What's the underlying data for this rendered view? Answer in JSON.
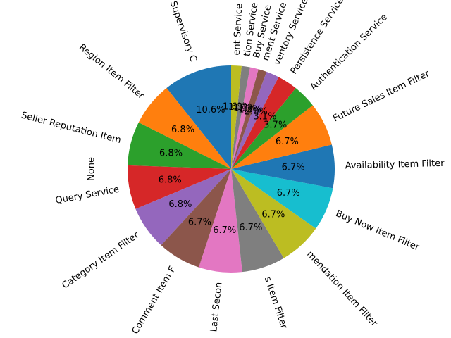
{
  "chart_data": {
    "type": "pie",
    "ylabel": "None",
    "start_angle_deg": 90,
    "direction": "counterclockwise",
    "colors": [
      "#1f77b4",
      "#ff7f0e",
      "#2ca02c",
      "#d62728",
      "#9467bd",
      "#8c564b",
      "#e377c2",
      "#7f7f7f",
      "#bcbd22",
      "#17becf"
    ],
    "slices": [
      {
        "label": "Supervisory C",
        "value": 10.6,
        "pct": "10.6%"
      },
      {
        "label": "Region Item Filter",
        "value": 6.8,
        "pct": "6.8%"
      },
      {
        "label": "Seller Reputation Item",
        "value": 6.8,
        "pct": "6.8%"
      },
      {
        "label": "Query Service",
        "value": 6.8,
        "pct": "6.8%"
      },
      {
        "label": "Category Item Filter",
        "value": 6.8,
        "pct": "6.8%"
      },
      {
        "label": "Comment Item F",
        "value": 6.7,
        "pct": "6.7%"
      },
      {
        "label": "Last Secon",
        "value": 6.7,
        "pct": "6.7%"
      },
      {
        "label": "s Item Filter",
        "value": 6.7,
        "pct": "6.7%"
      },
      {
        "label": "mendation Item Filter",
        "value": 6.7,
        "pct": "6.7%"
      },
      {
        "label": "Buy Now Item Filter",
        "value": 6.7,
        "pct": "6.7%"
      },
      {
        "label": "Availability Item Filter",
        "value": 6.7,
        "pct": "6.7%"
      },
      {
        "label": "Future Sales Item Filter",
        "value": 6.7,
        "pct": "6.7%"
      },
      {
        "label": "Authentication Service",
        "value": 3.7,
        "pct": "3.7%"
      },
      {
        "label": "Persistence Service",
        "value": 3.1,
        "pct": "3.1%"
      },
      {
        "label": "ventory Service",
        "value": 2.0,
        "pct": "2.0%"
      },
      {
        "label": "ment Service",
        "value": 1.3,
        "pct": "1.3%"
      },
      {
        "label": "Buy Service",
        "value": 1.3,
        "pct": "1.3%"
      },
      {
        "label": "tion Service",
        "value": 1.3,
        "pct": "1.3%"
      },
      {
        "label": "ent Service",
        "value": 1.6,
        "pct": "1.6%"
      }
    ]
  }
}
